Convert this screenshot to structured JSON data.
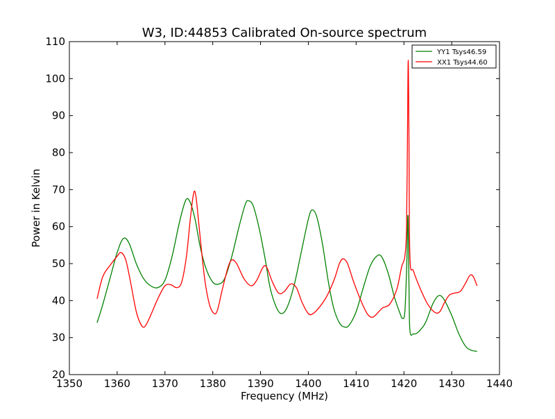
{
  "chart_data": {
    "type": "line",
    "title": "W3, ID:44853 Calibrated On-source spectrum",
    "xlabel": "Frequency (MHz)",
    "ylabel": "Power in Kelvin",
    "xlim": [
      1350,
      1440
    ],
    "ylim": [
      20,
      110
    ],
    "xticks": [
      1350,
      1360,
      1370,
      1380,
      1390,
      1400,
      1410,
      1420,
      1430,
      1440
    ],
    "yticks": [
      20,
      30,
      40,
      50,
      60,
      70,
      80,
      90,
      100,
      110
    ],
    "grid": false,
    "legend_position": "top-right",
    "series": [
      {
        "name": "YY1 Tsys46.59",
        "color": "#008000",
        "points": [
          [
            1355.8,
            34.0
          ],
          [
            1357.0,
            39.0
          ],
          [
            1358.5,
            46.0
          ],
          [
            1360.0,
            53.0
          ],
          [
            1361.3,
            56.8
          ],
          [
            1362.5,
            55.5
          ],
          [
            1364.0,
            50.0
          ],
          [
            1365.5,
            46.0
          ],
          [
            1367.0,
            44.0
          ],
          [
            1368.5,
            43.5
          ],
          [
            1370.0,
            45.5
          ],
          [
            1371.5,
            52.0
          ],
          [
            1373.0,
            61.0
          ],
          [
            1374.3,
            67.0
          ],
          [
            1375.2,
            66.8
          ],
          [
            1376.3,
            62.0
          ],
          [
            1377.3,
            55.0
          ],
          [
            1378.5,
            49.0
          ],
          [
            1380.0,
            45.0
          ],
          [
            1381.3,
            44.5
          ],
          [
            1382.5,
            46.0
          ],
          [
            1384.0,
            52.0
          ],
          [
            1385.5,
            60.0
          ],
          [
            1386.8,
            66.0
          ],
          [
            1387.5,
            67.0
          ],
          [
            1388.5,
            65.5
          ],
          [
            1389.8,
            59.0
          ],
          [
            1391.0,
            51.0
          ],
          [
            1392.0,
            43.5
          ],
          [
            1393.2,
            38.5
          ],
          [
            1394.3,
            36.5
          ],
          [
            1395.5,
            38.0
          ],
          [
            1397.0,
            44.0
          ],
          [
            1398.5,
            53.0
          ],
          [
            1400.0,
            62.0
          ],
          [
            1400.8,
            64.5
          ],
          [
            1401.8,
            62.5
          ],
          [
            1403.0,
            55.0
          ],
          [
            1404.2,
            45.0
          ],
          [
            1405.3,
            38.0
          ],
          [
            1406.5,
            34.0
          ],
          [
            1407.5,
            32.9
          ],
          [
            1408.5,
            33.3
          ],
          [
            1410.0,
            37.0
          ],
          [
            1411.5,
            43.5
          ],
          [
            1413.0,
            49.5
          ],
          [
            1414.5,
            52.2
          ],
          [
            1415.5,
            51.5
          ],
          [
            1416.8,
            47.0
          ],
          [
            1418.0,
            41.0
          ],
          [
            1419.2,
            36.5
          ],
          [
            1419.7,
            35.2
          ],
          [
            1420.2,
            37.0
          ],
          [
            1420.6,
            50.0
          ],
          [
            1420.85,
            63.0
          ],
          [
            1421.05,
            45.0
          ],
          [
            1421.25,
            32.0
          ],
          [
            1422.0,
            31.0
          ],
          [
            1423.0,
            31.5
          ],
          [
            1424.5,
            34.0
          ],
          [
            1426.0,
            39.0
          ],
          [
            1427.2,
            41.3
          ],
          [
            1428.3,
            40.5
          ],
          [
            1430.0,
            36.0
          ],
          [
            1431.5,
            31.0
          ],
          [
            1433.0,
            27.5
          ],
          [
            1434.3,
            26.5
          ],
          [
            1435.3,
            26.3
          ]
        ]
      },
      {
        "name": "XX1 Tsys44.60",
        "color": "#ff0000",
        "points": [
          [
            1355.8,
            40.5
          ],
          [
            1357.0,
            46.5
          ],
          [
            1358.5,
            49.5
          ],
          [
            1360.0,
            52.0
          ],
          [
            1360.8,
            53.0
          ],
          [
            1361.8,
            51.0
          ],
          [
            1362.8,
            45.0
          ],
          [
            1364.0,
            37.0
          ],
          [
            1365.0,
            33.5
          ],
          [
            1365.8,
            33.0
          ],
          [
            1367.0,
            36.0
          ],
          [
            1368.5,
            40.5
          ],
          [
            1370.0,
            44.0
          ],
          [
            1371.2,
            44.3
          ],
          [
            1372.5,
            43.5
          ],
          [
            1373.5,
            45.0
          ],
          [
            1374.5,
            52.0
          ],
          [
            1375.3,
            62.0
          ],
          [
            1376.0,
            69.0
          ],
          [
            1376.5,
            68.0
          ],
          [
            1377.3,
            58.0
          ],
          [
            1378.3,
            46.0
          ],
          [
            1379.3,
            39.0
          ],
          [
            1380.3,
            36.5
          ],
          [
            1381.0,
            37.5
          ],
          [
            1382.0,
            43.0
          ],
          [
            1383.2,
            49.0
          ],
          [
            1384.0,
            51.0
          ],
          [
            1385.0,
            50.0
          ],
          [
            1386.5,
            46.0
          ],
          [
            1388.0,
            44.0
          ],
          [
            1389.2,
            45.5
          ],
          [
            1390.5,
            49.0
          ],
          [
            1391.3,
            49.0
          ],
          [
            1392.5,
            45.0
          ],
          [
            1393.8,
            42.0
          ],
          [
            1395.0,
            42.5
          ],
          [
            1396.3,
            44.5
          ],
          [
            1397.5,
            43.5
          ],
          [
            1398.7,
            39.5
          ],
          [
            1400.0,
            36.5
          ],
          [
            1401.0,
            36.5
          ],
          [
            1402.5,
            38.5
          ],
          [
            1404.0,
            41.5
          ],
          [
            1405.5,
            46.0
          ],
          [
            1406.5,
            50.0
          ],
          [
            1407.3,
            51.3
          ],
          [
            1408.2,
            50.0
          ],
          [
            1409.5,
            45.0
          ],
          [
            1411.0,
            40.0
          ],
          [
            1412.3,
            36.5
          ],
          [
            1413.2,
            35.5
          ],
          [
            1414.0,
            36.0
          ],
          [
            1415.5,
            38.0
          ],
          [
            1417.0,
            39.0
          ],
          [
            1418.5,
            43.0
          ],
          [
            1419.5,
            49.0
          ],
          [
            1420.2,
            52.0
          ],
          [
            1420.55,
            60.0
          ],
          [
            1420.75,
            85.0
          ],
          [
            1420.9,
            105.0
          ],
          [
            1421.05,
            85.0
          ],
          [
            1421.25,
            52.0
          ],
          [
            1422.0,
            48.0
          ],
          [
            1423.5,
            43.0
          ],
          [
            1425.0,
            39.0
          ],
          [
            1426.5,
            36.8
          ],
          [
            1427.5,
            37.0
          ],
          [
            1428.5,
            39.5
          ],
          [
            1429.5,
            41.5
          ],
          [
            1430.5,
            42.0
          ],
          [
            1431.8,
            42.5
          ],
          [
            1432.8,
            44.5
          ],
          [
            1433.8,
            46.8
          ],
          [
            1434.5,
            46.5
          ],
          [
            1435.3,
            44.0
          ]
        ]
      }
    ]
  }
}
